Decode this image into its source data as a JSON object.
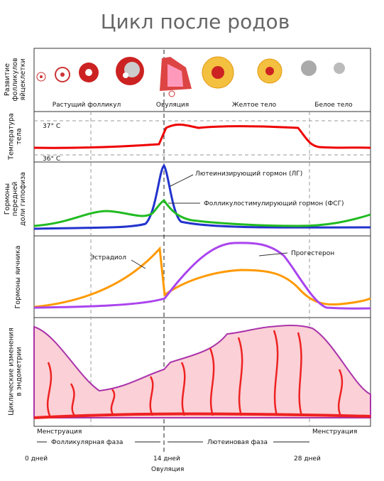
{
  "title": "Цикл после родов",
  "panels": [
    {
      "label_lines": [
        "Развитие",
        "фолликулов",
        "яйцеклетки"
      ],
      "stages": [
        "Растущий фолликул",
        "Овуляция",
        "Желтое тело",
        "Белое тело"
      ]
    },
    {
      "label_lines": [
        "Температура",
        "тела"
      ],
      "levels": [
        "37° C",
        "36° C"
      ]
    },
    {
      "label_lines": [
        "Гормоны",
        "передней",
        "доли гипофиза"
      ],
      "curves": [
        "Лютеинизирующий гормон (ЛГ)",
        "Фолликулостимулирующий гормон (ФСГ)"
      ]
    },
    {
      "label_lines": [
        "Гормоны яичника"
      ],
      "curves": [
        "Эстрадиол",
        "Прогестерон"
      ]
    },
    {
      "label_lines": [
        "Циклические изменения",
        "в эндометрии"
      ],
      "captions": [
        "Менструация",
        "Менструация"
      ]
    }
  ],
  "phases": [
    "Фолликулярная фаза",
    "Лютеиновая фаза"
  ],
  "days": [
    "0 дней",
    "14 дней",
    "28 дней"
  ],
  "ovulation": "Овуляция"
}
